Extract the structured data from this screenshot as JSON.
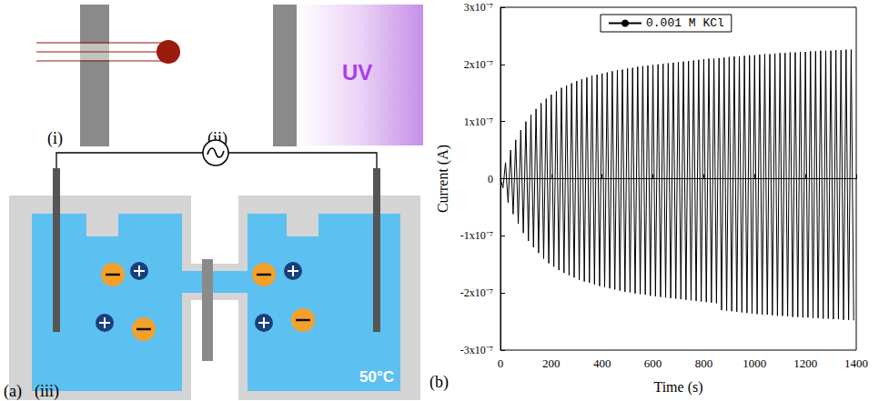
{
  "panel_labels": [
    "(a)",
    "(b)"
  ],
  "diagram": {
    "subpanels": [
      "(i)",
      "(ii)",
      "(iii)"
    ],
    "uv_label": "UV",
    "temperature": "50°C"
  },
  "chart_data": {
    "type": "line",
    "x_label": "Time (s)",
    "y_label": "Current (A)",
    "xlim": [
      0,
      1400
    ],
    "xticks": [
      0,
      200,
      400,
      600,
      800,
      1000,
      1200,
      1400
    ],
    "ylim": [
      -3e-07,
      3e-07
    ],
    "yticks": [
      {
        "value": -3e-07,
        "label": "-3x10⁻⁷"
      },
      {
        "value": -2e-07,
        "label": "-2x10⁻⁷"
      },
      {
        "value": -1e-07,
        "label": "-1x10⁻⁷"
      },
      0,
      {
        "value": 1e-07,
        "label": "1x10⁻⁷"
      },
      {
        "value": 2e-07,
        "label": "2x10⁻⁷"
      },
      {
        "value": 3e-07,
        "label": "3x10⁻⁷"
      }
    ],
    "grid": false,
    "legend": "top",
    "x": [
      0,
      10,
      20,
      30,
      40,
      50,
      60,
      70,
      80,
      90,
      100,
      110,
      120,
      130,
      140,
      150,
      160,
      170,
      180,
      190,
      200,
      210,
      220,
      230,
      240,
      250,
      260,
      270,
      280,
      290,
      300,
      310,
      320,
      330,
      340,
      350,
      360,
      370,
      380,
      390,
      400,
      410,
      420,
      430,
      440,
      450,
      460,
      470,
      480,
      490,
      500,
      510,
      520,
      530,
      540,
      550,
      560,
      570,
      580,
      590,
      600,
      610,
      620,
      630,
      640,
      650,
      660,
      670,
      680,
      690,
      700,
      710,
      720,
      730,
      740,
      750,
      760,
      770,
      780,
      790,
      800,
      810,
      820,
      830,
      840,
      850,
      860,
      870,
      880,
      890,
      900,
      910,
      920,
      930,
      940,
      950,
      960,
      970,
      980,
      990,
      1000,
      1010,
      1020,
      1030,
      1040,
      1050,
      1060,
      1070,
      1080,
      1090,
      1100,
      1110,
      1120,
      1130,
      1140,
      1150,
      1160,
      1170,
      1180,
      1190,
      1200,
      1210,
      1220,
      1230,
      1240,
      1250,
      1260,
      1270,
      1280,
      1290,
      1300,
      1310,
      1320,
      1330,
      1340,
      1350,
      1360,
      1370,
      1380,
      1390
    ],
    "series": [
      {
        "name": "0.001 M KCl",
        "color": "#000000",
        "line_style": "solid",
        "values": [
          0,
          -1.6e-08,
          2.8e-08,
          -4.2e-08,
          5e-08,
          -6.2e-08,
          6.8e-08,
          -7.9e-08,
          8.5e-08,
          -9.5e-08,
          1e-07,
          -1.09e-07,
          1.12e-07,
          -1.2e-07,
          1.22e-07,
          -1.3e-07,
          1.32e-07,
          -1.4e-07,
          1.4e-07,
          -1.48e-07,
          1.47e-07,
          -1.54e-07,
          1.53e-07,
          -1.6e-07,
          1.59e-07,
          -1.65e-07,
          1.63e-07,
          -1.69e-07,
          1.67e-07,
          -1.73e-07,
          1.71e-07,
          -1.77e-07,
          1.74e-07,
          -1.8e-07,
          1.77e-07,
          -1.82e-07,
          1.8e-07,
          -1.85e-07,
          1.82e-07,
          -1.88e-07,
          1.84e-07,
          -1.9e-07,
          1.86e-07,
          -1.92e-07,
          1.88e-07,
          -1.94e-07,
          1.9e-07,
          -1.96e-07,
          1.91e-07,
          -1.98e-07,
          1.93e-07,
          -1.99e-07,
          1.94e-07,
          -2.01e-07,
          1.96e-07,
          -2.02e-07,
          1.97e-07,
          -2.03e-07,
          1.98e-07,
          -2.05e-07,
          1.99e-07,
          -2.06e-07,
          2e-07,
          -2.07e-07,
          2.01e-07,
          -2.08e-07,
          2.02e-07,
          -2.09e-07,
          2.03e-07,
          -2.1e-07,
          2.04e-07,
          -2.11e-07,
          2.05e-07,
          -2.12e-07,
          2.06e-07,
          -2.13e-07,
          2.07e-07,
          -2.14e-07,
          2.08e-07,
          -2.15e-07,
          2.09e-07,
          -2.16e-07,
          2.1e-07,
          -2.17e-07,
          2.1e-07,
          -2.18e-07,
          2.11e-07,
          -2.3e-07,
          2.12e-07,
          -2.31e-07,
          2.13e-07,
          -2.32e-07,
          2.14e-07,
          -2.33e-07,
          2.14e-07,
          -2.34e-07,
          2.15e-07,
          -2.35e-07,
          2.16e-07,
          -2.36e-07,
          2.16e-07,
          -2.37e-07,
          2.17e-07,
          -2.38e-07,
          2.18e-07,
          -2.38e-07,
          2.18e-07,
          -2.39e-07,
          2.19e-07,
          -2.4e-07,
          2.2e-07,
          -2.4e-07,
          2.2e-07,
          -2.41e-07,
          2.21e-07,
          -2.42e-07,
          2.21e-07,
          -2.42e-07,
          2.22e-07,
          -2.43e-07,
          2.22e-07,
          -2.43e-07,
          2.23e-07,
          -2.44e-07,
          2.23e-07,
          -2.44e-07,
          2.24e-07,
          -2.45e-07,
          2.24e-07,
          -2.45e-07,
          2.24e-07,
          -2.46e-07,
          2.25e-07,
          -2.46e-07,
          2.25e-07,
          -2.47e-07,
          2.26e-07,
          -2.47e-07,
          2.26e-07,
          -2.48e-07
        ]
      }
    ]
  }
}
